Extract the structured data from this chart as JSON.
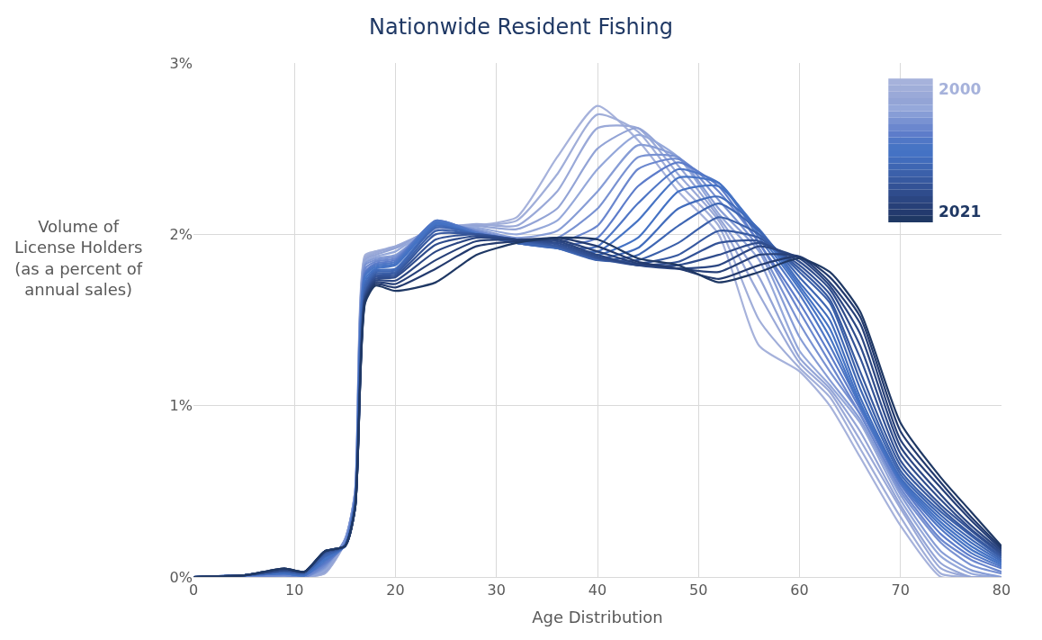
{
  "chart_data": {
    "type": "line",
    "title": "Nationwide Resident Fishing",
    "xlabel": "Age Distribution",
    "ylabel": "Volume of License Holders (as a percent of annual sales)",
    "x": [
      0,
      5,
      9,
      11,
      13,
      15,
      16,
      17,
      18,
      20,
      24,
      28,
      32,
      36,
      40,
      44,
      48,
      52,
      56,
      60,
      63,
      66,
      70,
      74,
      77,
      80
    ],
    "xlim": [
      0,
      80
    ],
    "xticks": [
      0,
      10,
      20,
      30,
      40,
      50,
      60,
      70,
      80
    ],
    "ylim": [
      0,
      3
    ],
    "yticks": [
      {
        "value": 0,
        "label": "0%"
      },
      {
        "value": 1,
        "label": "1%"
      },
      {
        "value": 2,
        "label": "2%"
      },
      {
        "value": 3,
        "label": "3%"
      }
    ],
    "grid": true,
    "legend": "top right",
    "marker": "none",
    "line_style": "solid",
    "series": [
      {
        "name": "2000",
        "color": "#a6b2db",
        "values": [
          0,
          0,
          0,
          0,
          0.02,
          0.2,
          0.5,
          1.88,
          1.9,
          1.92,
          2.0,
          2.05,
          2.1,
          2.45,
          2.75,
          2.55,
          2.25,
          2.0,
          1.35,
          1.2,
          1.0,
          0.7,
          0.3,
          0.0,
          0,
          0
        ]
      },
      {
        "color": "#a0aed9",
        "values": [
          0,
          0,
          0,
          0,
          0.02,
          0.2,
          0.5,
          1.87,
          1.9,
          1.93,
          2.02,
          2.05,
          2.08,
          2.35,
          2.7,
          2.6,
          2.3,
          2.05,
          1.5,
          1.22,
          1.05,
          0.75,
          0.35,
          0.02,
          0,
          0
        ]
      },
      {
        "color": "#9aa9d8",
        "values": [
          0,
          0,
          0,
          0,
          0.03,
          0.21,
          0.5,
          1.86,
          1.89,
          1.93,
          2.03,
          2.06,
          2.05,
          2.25,
          2.62,
          2.62,
          2.35,
          2.08,
          1.65,
          1.25,
          1.08,
          0.8,
          0.4,
          0.05,
          0,
          0
        ]
      },
      {
        "color": "#93a4d6",
        "values": [
          0,
          0,
          0,
          0,
          0.03,
          0.21,
          0.49,
          1.85,
          1.88,
          1.92,
          2.04,
          2.05,
          2.03,
          2.15,
          2.5,
          2.62,
          2.4,
          2.1,
          1.75,
          1.28,
          1.1,
          0.85,
          0.42,
          0.08,
          0,
          0
        ]
      },
      {
        "color": "#95a8da",
        "values": [
          0,
          0,
          0,
          0,
          0.04,
          0.22,
          0.49,
          1.84,
          1.87,
          1.9,
          2.05,
          2.04,
          2.0,
          2.08,
          2.38,
          2.58,
          2.45,
          2.12,
          1.85,
          1.32,
          1.12,
          0.9,
          0.45,
          0.12,
          0.02,
          0
        ]
      },
      {
        "color": "#879dd6",
        "values": [
          0,
          0,
          0,
          0,
          0.05,
          0.22,
          0.48,
          1.83,
          1.86,
          1.88,
          2.05,
          2.03,
          1.98,
          2.02,
          2.25,
          2.52,
          2.45,
          2.15,
          1.9,
          1.4,
          1.15,
          0.92,
          0.48,
          0.15,
          0.04,
          0
        ]
      },
      {
        "color": "#7992d2",
        "values": [
          0,
          0,
          0.01,
          0,
          0.06,
          0.22,
          0.48,
          1.82,
          1.85,
          1.87,
          2.06,
          2.02,
          1.97,
          1.98,
          2.15,
          2.45,
          2.45,
          2.2,
          1.92,
          1.48,
          1.2,
          0.95,
          0.5,
          0.2,
          0.07,
          0.02
        ]
      },
      {
        "color": "#6b87ce",
        "values": [
          0,
          0,
          0.01,
          0,
          0.07,
          0.2,
          0.47,
          1.8,
          1.84,
          1.86,
          2.07,
          2.02,
          1.96,
          1.95,
          2.05,
          2.38,
          2.44,
          2.25,
          1.95,
          1.55,
          1.25,
          0.95,
          0.52,
          0.22,
          0.1,
          0.03
        ]
      },
      {
        "color": "#5d7cca",
        "values": [
          0,
          0.01,
          0.02,
          0.01,
          0.08,
          0.19,
          0.46,
          1.78,
          1.83,
          1.85,
          2.08,
          2.01,
          1.96,
          1.93,
          1.98,
          2.28,
          2.42,
          2.28,
          1.95,
          1.6,
          1.3,
          0.98,
          0.54,
          0.25,
          0.12,
          0.05
        ]
      },
      {
        "color": "#5077c6",
        "values": [
          0,
          0.01,
          0.02,
          0.01,
          0.09,
          0.19,
          0.45,
          1.77,
          1.82,
          1.84,
          2.08,
          2.01,
          1.95,
          1.92,
          1.93,
          2.18,
          2.38,
          2.3,
          1.98,
          1.65,
          1.35,
          1.0,
          0.55,
          0.28,
          0.14,
          0.06
        ]
      },
      {
        "color": "#4774c4",
        "values": [
          0,
          0.01,
          0.02,
          0.01,
          0.1,
          0.18,
          0.45,
          1.76,
          1.81,
          1.83,
          2.07,
          2.0,
          1.95,
          1.92,
          1.9,
          2.08,
          2.33,
          2.3,
          2.0,
          1.68,
          1.4,
          1.0,
          0.56,
          0.3,
          0.16,
          0.07
        ]
      },
      {
        "color": "#4472c4",
        "values": [
          0,
          0.01,
          0.02,
          0.01,
          0.11,
          0.18,
          0.44,
          1.74,
          1.8,
          1.82,
          2.06,
          2.0,
          1.95,
          1.92,
          1.88,
          1.98,
          2.25,
          2.28,
          2.02,
          1.7,
          1.45,
          1.02,
          0.57,
          0.32,
          0.18,
          0.08
        ]
      },
      {
        "color": "#416cbc",
        "values": [
          0,
          0.01,
          0.03,
          0.02,
          0.12,
          0.18,
          0.43,
          1.72,
          1.79,
          1.8,
          2.05,
          2.0,
          1.95,
          1.92,
          1.86,
          1.92,
          2.15,
          2.22,
          2.03,
          1.72,
          1.5,
          1.05,
          0.58,
          0.34,
          0.2,
          0.09
        ]
      },
      {
        "color": "#3e66b3",
        "values": [
          0,
          0.01,
          0.03,
          0.02,
          0.12,
          0.18,
          0.42,
          1.7,
          1.78,
          1.79,
          2.04,
          2.0,
          1.95,
          1.92,
          1.85,
          1.88,
          2.05,
          2.18,
          2.02,
          1.75,
          1.55,
          1.1,
          0.6,
          0.36,
          0.22,
          0.1
        ]
      },
      {
        "color": "#3b60aa",
        "values": [
          0,
          0.01,
          0.03,
          0.02,
          0.13,
          0.18,
          0.42,
          1.68,
          1.77,
          1.78,
          2.02,
          2.0,
          1.96,
          1.93,
          1.85,
          1.85,
          1.95,
          2.1,
          2.0,
          1.78,
          1.6,
          1.15,
          0.62,
          0.38,
          0.24,
          0.11
        ]
      },
      {
        "color": "#3759a0",
        "values": [
          0,
          0.01,
          0.04,
          0.03,
          0.14,
          0.18,
          0.41,
          1.66,
          1.76,
          1.77,
          2.0,
          2.0,
          1.97,
          1.93,
          1.86,
          1.83,
          1.88,
          2.02,
          1.98,
          1.8,
          1.62,
          1.2,
          0.65,
          0.4,
          0.25,
          0.12
        ]
      },
      {
        "color": "#335296",
        "values": [
          0,
          0.01,
          0.04,
          0.03,
          0.14,
          0.18,
          0.41,
          1.65,
          1.75,
          1.76,
          1.97,
          2.0,
          1.97,
          1.94,
          1.86,
          1.82,
          1.84,
          1.95,
          1.96,
          1.82,
          1.65,
          1.28,
          0.68,
          0.42,
          0.27,
          0.13
        ]
      },
      {
        "color": "#2f4c8c",
        "values": [
          0,
          0.01,
          0.04,
          0.03,
          0.15,
          0.18,
          0.4,
          1.64,
          1.74,
          1.75,
          1.94,
          1.99,
          1.97,
          1.95,
          1.87,
          1.82,
          1.82,
          1.88,
          1.95,
          1.84,
          1.68,
          1.35,
          0.72,
          0.45,
          0.28,
          0.14
        ]
      },
      {
        "color": "#2b4682",
        "values": [
          0,
          0.01,
          0.04,
          0.03,
          0.15,
          0.18,
          0.4,
          1.63,
          1.73,
          1.73,
          1.9,
          1.98,
          1.97,
          1.96,
          1.88,
          1.82,
          1.8,
          1.82,
          1.93,
          1.86,
          1.7,
          1.42,
          0.76,
          0.48,
          0.3,
          0.15
        ]
      },
      {
        "color": "#274078",
        "values": [
          0,
          0.01,
          0.05,
          0.03,
          0.15,
          0.18,
          0.4,
          1.62,
          1.72,
          1.71,
          1.85,
          1.96,
          1.97,
          1.97,
          1.9,
          1.83,
          1.8,
          1.78,
          1.88,
          1.87,
          1.72,
          1.48,
          0.8,
          0.52,
          0.33,
          0.16
        ]
      },
      {
        "color": "#233a6e",
        "values": [
          0,
          0.01,
          0.05,
          0.03,
          0.15,
          0.18,
          0.4,
          1.61,
          1.71,
          1.69,
          1.8,
          1.93,
          1.96,
          1.98,
          1.93,
          1.84,
          1.8,
          1.74,
          1.82,
          1.87,
          1.75,
          1.52,
          0.85,
          0.55,
          0.35,
          0.17
        ]
      },
      {
        "name": "2021",
        "color": "#1f3864",
        "values": [
          0,
          0.01,
          0.05,
          0.03,
          0.15,
          0.18,
          0.4,
          1.6,
          1.7,
          1.67,
          1.72,
          1.88,
          1.95,
          1.98,
          1.97,
          1.86,
          1.82,
          1.72,
          1.78,
          1.86,
          1.78,
          1.55,
          0.9,
          0.58,
          0.38,
          0.18
        ]
      }
    ]
  }
}
